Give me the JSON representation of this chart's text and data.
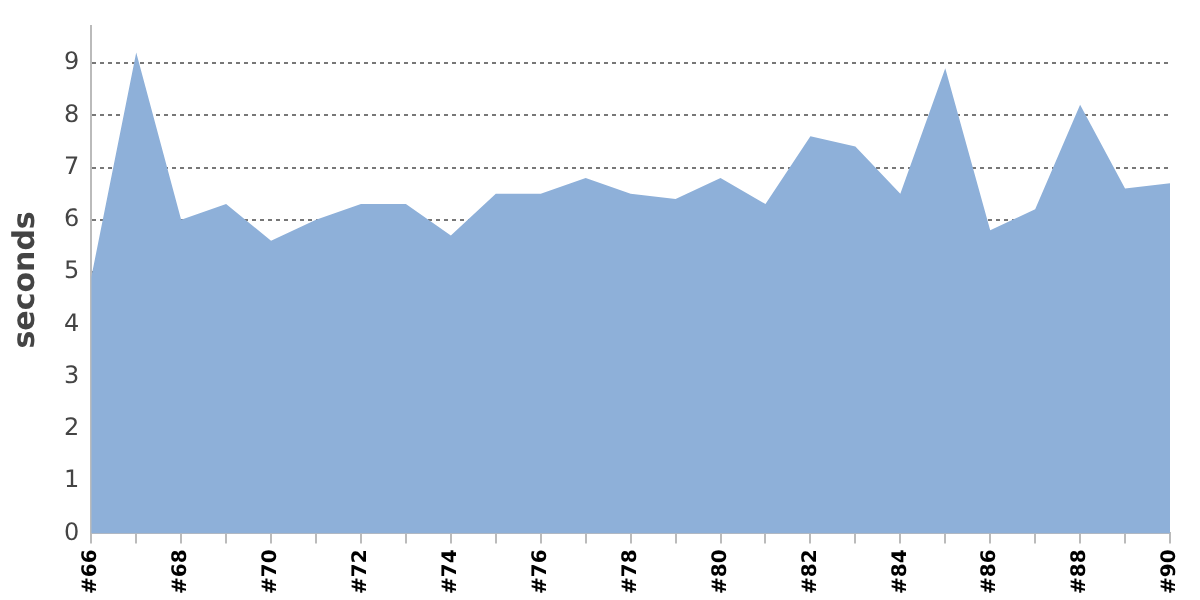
{
  "chart_data": {
    "type": "area",
    "ylabel": "seconds",
    "categories": [
      "#66",
      null,
      "#68",
      null,
      "#70",
      null,
      "#72",
      null,
      "#74",
      null,
      "#76",
      null,
      "#78",
      null,
      "#80",
      null,
      "#82",
      null,
      "#84",
      null,
      "#86",
      null,
      "#88",
      null,
      "#90"
    ],
    "series": [
      {
        "color": "#8eb0d9",
        "values": [
          4.9,
          9.2,
          6.0,
          6.3,
          5.6,
          6.0,
          6.3,
          6.3,
          5.7,
          6.5,
          6.5,
          6.8,
          6.5,
          6.4,
          6.8,
          6.3,
          7.6,
          7.4,
          6.5,
          8.9,
          5.8,
          6.2,
          8.2,
          6.6,
          6.7
        ]
      }
    ],
    "ylim": [
      0,
      9.7
    ],
    "yticks": [
      0,
      1,
      2,
      3,
      4,
      5,
      6,
      7,
      8,
      9
    ],
    "grid": "y",
    "legend": false
  }
}
